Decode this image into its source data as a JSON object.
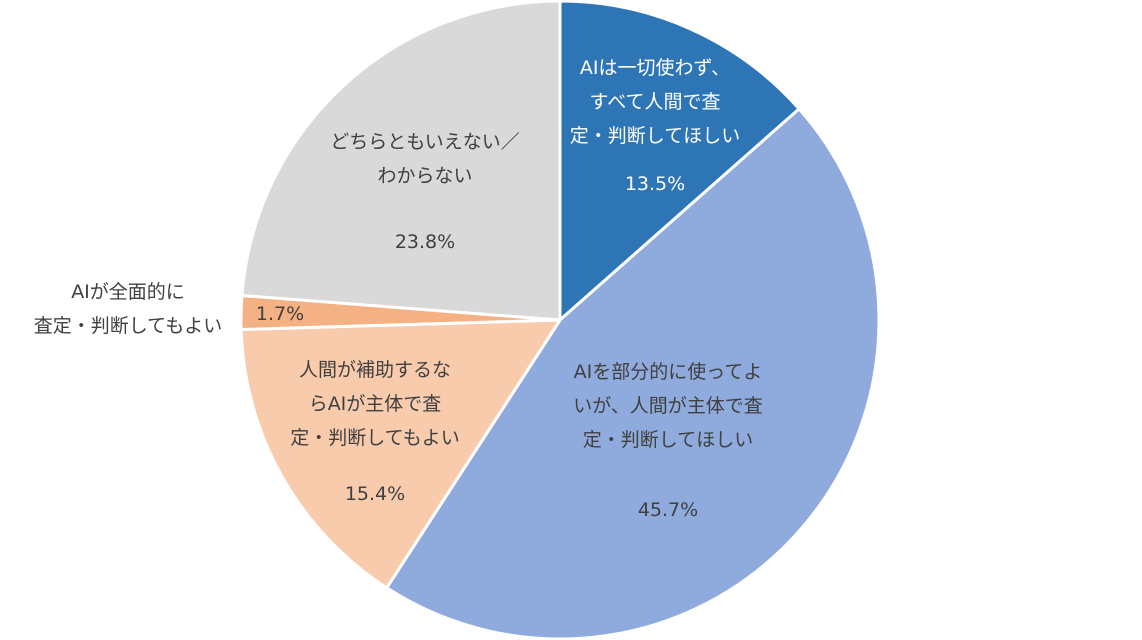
{
  "chart_data": {
    "type": "pie",
    "title": "",
    "start_angle_deg": 0,
    "direction": "clockwise",
    "slices": [
      {
        "label_lines": [
          "AIは一切使わず、",
          "すべて人間で査",
          "定・判断してほしい"
        ],
        "value": 13.5,
        "value_label": "13.5%",
        "color": "#2e75b6",
        "text_color": "#ffffff"
      },
      {
        "label_lines": [
          "AIを部分的に使ってよ",
          "いが、人間が主体で査",
          "定・判断してほしい"
        ],
        "value": 45.7,
        "value_label": "45.7%",
        "color": "#8faadc",
        "text_color": "#404040"
      },
      {
        "label_lines": [
          "人間が補助するな",
          "らAIが主体で査",
          "定・判断してもよい"
        ],
        "value": 15.4,
        "value_label": "15.4%",
        "color": "#f8cbad",
        "text_color": "#404040"
      },
      {
        "label_lines": [
          "AIが全面的に",
          "査定・判断してもよい"
        ],
        "value": 1.7,
        "value_label": "1.7%",
        "color": "#f4b183",
        "text_color": "#404040"
      },
      {
        "label_lines": [
          "どちらともいえない／",
          "わからない"
        ],
        "value": 23.8,
        "value_label": "23.8%",
        "color": "#d9d9d9",
        "text_color": "#404040"
      }
    ]
  }
}
